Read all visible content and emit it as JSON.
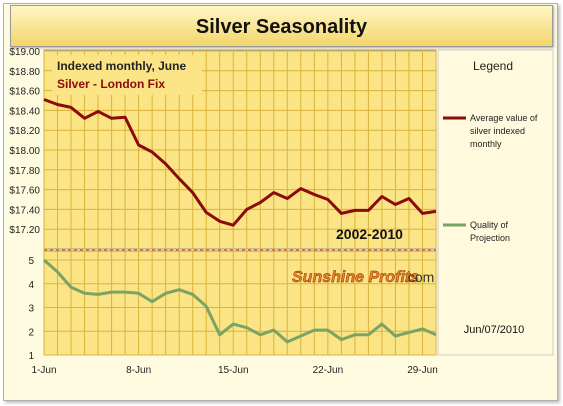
{
  "chart_data": [
    {
      "type": "line",
      "title": "Silver Seasonality",
      "subtitle": "Indexed monthly, June",
      "series_caption": "Silver - London Fix",
      "annotation": "2002-2010",
      "ylim": [
        17.0,
        19.0
      ],
      "yticks": [
        "$19.00",
        "$18.80",
        "$18.60",
        "$18.40",
        "$18.20",
        "$18.00",
        "$17.80",
        "$17.60",
        "$17.40",
        "$17.20"
      ],
      "xlim": [
        1,
        30
      ],
      "xticks": [
        "1-Jun",
        "8-Jun",
        "15-Jun",
        "22-Jun",
        "29-Jun"
      ],
      "grid": true,
      "legend_position": "right",
      "series": [
        {
          "name": "Average value of silver indexed monthly",
          "color": "#8b0a0a",
          "x": [
            1,
            2,
            3,
            4,
            5,
            6,
            7,
            8,
            9,
            10,
            11,
            12,
            13,
            14,
            15,
            16,
            17,
            18,
            19,
            20,
            21,
            22,
            23,
            24,
            25,
            26,
            27,
            28,
            29,
            30
          ],
          "values": [
            18.51,
            18.46,
            18.43,
            18.32,
            18.39,
            18.32,
            18.33,
            18.05,
            17.98,
            17.86,
            17.71,
            17.57,
            17.37,
            17.28,
            17.24,
            17.4,
            17.47,
            17.57,
            17.51,
            17.61,
            17.55,
            17.5,
            17.36,
            17.39,
            17.39,
            17.53,
            17.45,
            17.51,
            17.36,
            17.38
          ]
        }
      ]
    },
    {
      "type": "line",
      "ylim": [
        1,
        5
      ],
      "yticks": [
        "5",
        "4",
        "3",
        "2",
        "1"
      ],
      "xlim": [
        1,
        30
      ],
      "grid": true,
      "legend_position": "right",
      "series": [
        {
          "name": "Quality of Projection",
          "color": "#7aa364",
          "x": [
            1,
            2,
            3,
            4,
            5,
            6,
            7,
            8,
            9,
            10,
            11,
            12,
            13,
            14,
            15,
            16,
            17,
            18,
            19,
            20,
            21,
            22,
            23,
            24,
            25,
            26,
            27,
            28,
            29,
            30
          ],
          "values": [
            5.0,
            4.5,
            3.85,
            3.6,
            3.55,
            3.65,
            3.65,
            3.6,
            3.25,
            3.6,
            3.75,
            3.55,
            3.05,
            1.85,
            2.3,
            2.15,
            1.85,
            2.05,
            1.55,
            1.8,
            2.05,
            2.05,
            1.65,
            1.85,
            1.85,
            2.3,
            1.8,
            1.95,
            2.1,
            1.85
          ]
        }
      ]
    }
  ],
  "legend": {
    "title": "Legend",
    "items": [
      {
        "label_lines": [
          "Average value of",
          "silver indexed",
          "monthly"
        ],
        "color": "#8b0a0a"
      },
      {
        "label_lines": [
          "Quality of",
          "Projection"
        ],
        "color": "#7aa364"
      }
    ]
  },
  "branding": {
    "name": "Sunshine Profits",
    "suffix": ".com"
  },
  "date_stamp": "Jun/07/2010"
}
